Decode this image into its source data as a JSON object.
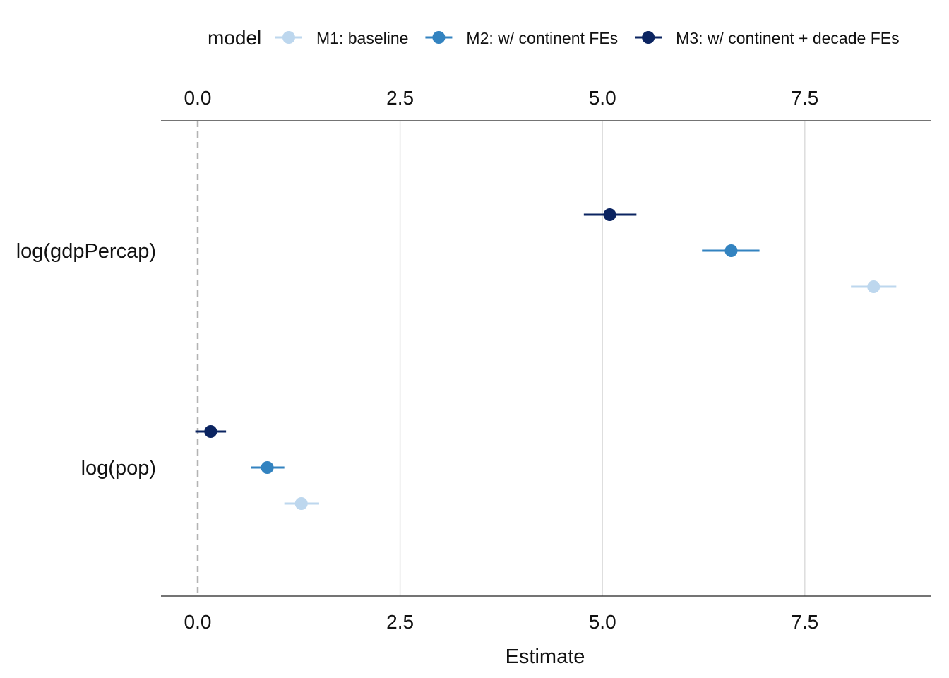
{
  "chart_data": {
    "type": "coefficient-plot",
    "xlabel": "Estimate",
    "ylabel": "",
    "xlim": [
      -0.45,
      9.05
    ],
    "x_ticks": [
      0.0,
      2.5,
      5.0,
      7.5
    ],
    "x_tick_labels": [
      "0.0",
      "2.5",
      "5.0",
      "7.5"
    ],
    "x_axis_position": "top and bottom",
    "reference_line": 0,
    "grid": "vertical major gridlines",
    "legend": {
      "title": "model",
      "position": "top"
    },
    "terms": [
      "log(gdpPercap)",
      "log(pop)"
    ],
    "series": [
      {
        "name": "M1: baseline",
        "color": "#bdd7ee",
        "points": [
          {
            "term": "log(gdpPercap)",
            "estimate": 8.35,
            "conf_low": 8.07,
            "conf_high": 8.63
          },
          {
            "term": "log(pop)",
            "estimate": 1.28,
            "conf_low": 1.07,
            "conf_high": 1.5
          }
        ]
      },
      {
        "name": "M2: w/ continent FEs",
        "color": "#3383c0",
        "points": [
          {
            "term": "log(gdpPercap)",
            "estimate": 6.59,
            "conf_low": 6.23,
            "conf_high": 6.94
          },
          {
            "term": "log(pop)",
            "estimate": 0.86,
            "conf_low": 0.66,
            "conf_high": 1.07
          }
        ]
      },
      {
        "name": "M3: w/ continent + decade FEs",
        "color": "#0b2461",
        "points": [
          {
            "term": "log(gdpPercap)",
            "estimate": 5.09,
            "conf_low": 4.77,
            "conf_high": 5.42
          },
          {
            "term": "log(pop)",
            "estimate": 0.16,
            "conf_low": -0.03,
            "conf_high": 0.35
          }
        ]
      }
    ]
  }
}
